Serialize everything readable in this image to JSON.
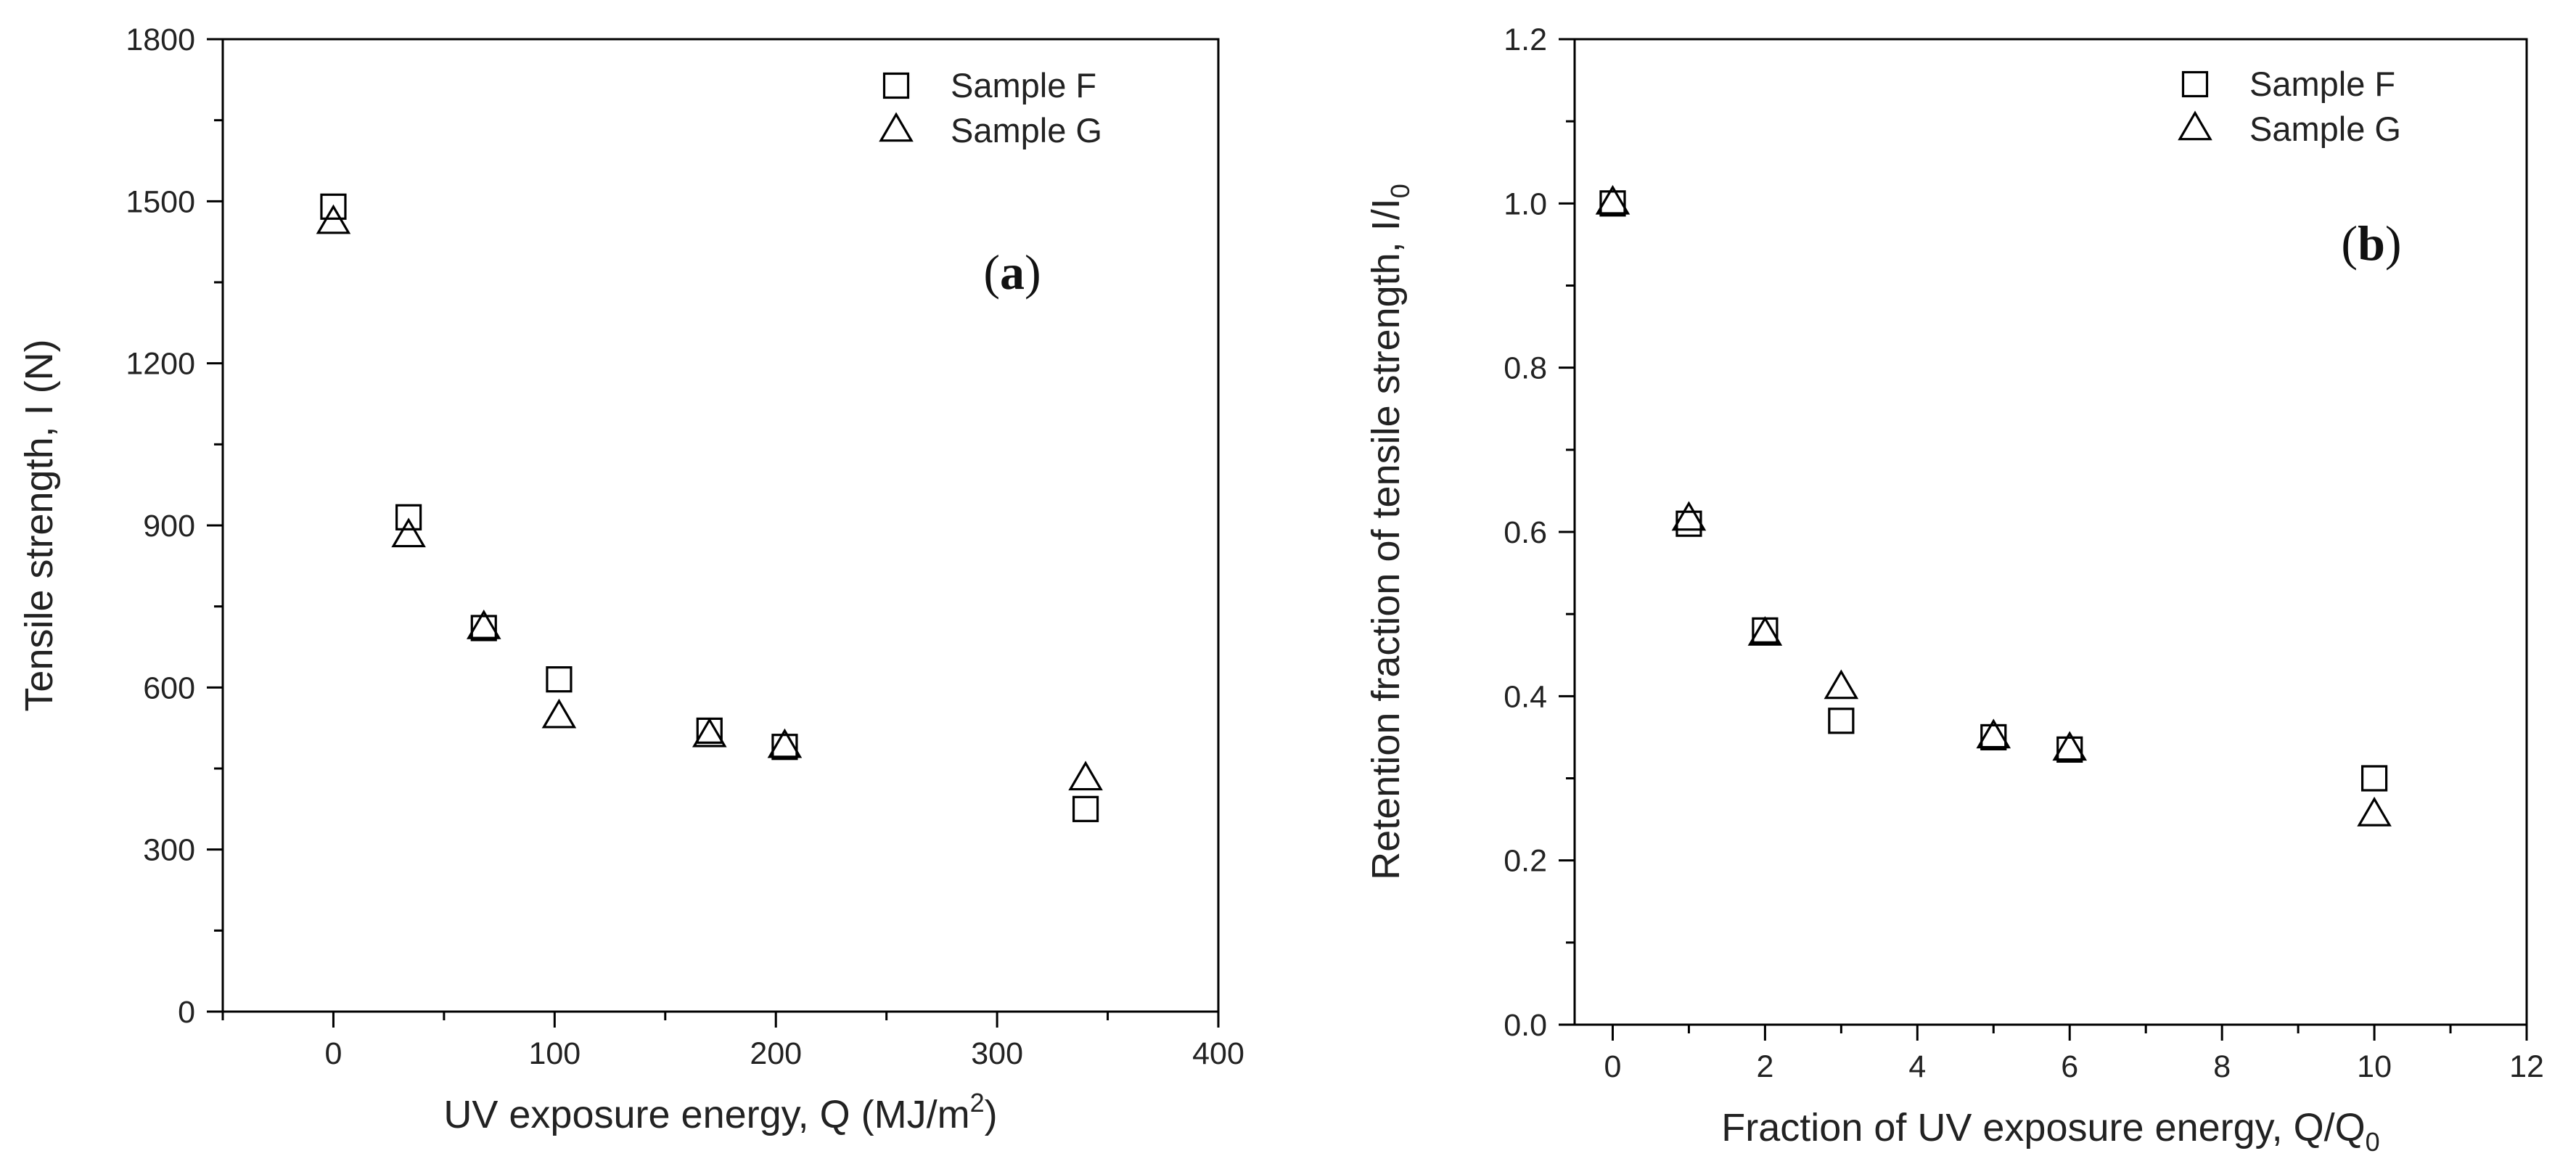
{
  "chart_data": [
    {
      "type": "scatter",
      "panel_label": "(a)",
      "panel_letter": "a",
      "xlabel": "UV exposure energy, Q (MJ/m²)",
      "xlabel_parts": [
        "UV exposure energy, Q (MJ/m",
        "2",
        ")"
      ],
      "ylabel": "Tensile strength, I (N)",
      "xlim": [
        -50,
        400
      ],
      "ylim": [
        0,
        1800
      ],
      "xticks": [
        0,
        100,
        200,
        300,
        400
      ],
      "xticks_minor": [
        -50,
        50,
        150,
        250,
        350
      ],
      "yticks": [
        0,
        300,
        600,
        900,
        1200,
        1500,
        1800
      ],
      "yticks_minor": [
        150,
        450,
        750,
        1050,
        1350,
        1650
      ],
      "legend_position": "top-right",
      "series": [
        {
          "name": "Sample F",
          "marker": "square",
          "x": [
            0,
            34,
            68,
            102,
            170,
            204,
            340
          ],
          "y": [
            1490,
            915,
            710,
            615,
            520,
            490,
            375
          ]
        },
        {
          "name": "Sample G",
          "marker": "triangle",
          "x": [
            0,
            34,
            68,
            102,
            170,
            204,
            340
          ],
          "y": [
            1460,
            880,
            710,
            545,
            510,
            490,
            430
          ]
        }
      ]
    },
    {
      "type": "scatter",
      "panel_label": "(b)",
      "panel_letter": "b",
      "xlabel": "Fraction of UV exposure energy, Q/Q₀",
      "xlabel_parts": [
        "Fraction of UV exposure energy, Q/Q",
        "0",
        ""
      ],
      "ylabel": "Retention fraction of tensile strength, I/I₀",
      "ylabel_parts": [
        "Retention fraction of tensile strength, I/I",
        "0"
      ],
      "xlim": [
        -0.5,
        12
      ],
      "ylim": [
        0.0,
        1.2
      ],
      "xticks": [
        0,
        2,
        4,
        6,
        8,
        10,
        12
      ],
      "xticks_minor": [
        1,
        3,
        5,
        7,
        9,
        11
      ],
      "yticks": [
        0.0,
        0.2,
        0.4,
        0.6,
        0.8,
        1.0,
        1.2
      ],
      "yticks_minor": [
        0.1,
        0.3,
        0.5,
        0.7,
        0.9,
        1.1
      ],
      "legend_position": "top-right",
      "series": [
        {
          "name": "Sample F",
          "marker": "square",
          "x": [
            0,
            1,
            2,
            3,
            5,
            6,
            10
          ],
          "y": [
            1.0,
            0.61,
            0.48,
            0.37,
            0.35,
            0.335,
            0.3
          ]
        },
        {
          "name": "Sample G",
          "marker": "triangle",
          "x": [
            0,
            1,
            2,
            3,
            5,
            6,
            10
          ],
          "y": [
            1.0,
            0.615,
            0.475,
            0.41,
            0.35,
            0.335,
            0.255
          ]
        }
      ]
    }
  ]
}
